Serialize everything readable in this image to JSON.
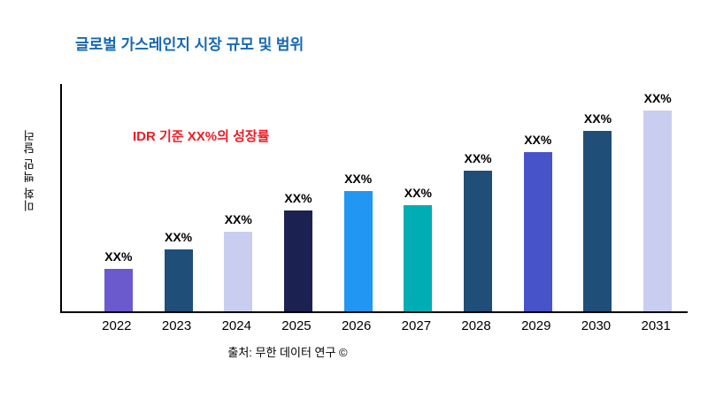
{
  "chart_data": {
    "type": "bar",
    "title": "글로벌 가스레인지 시장 규모 및 범위",
    "ylabel": "미화 백만 달러",
    "annotation": "IDR 기준 XX%의 성장률",
    "source": "출처: 무한 데이터 연구 ©",
    "categories": [
      "2022",
      "2023",
      "2024",
      "2025",
      "2026",
      "2027",
      "2028",
      "2029",
      "2030",
      "2031"
    ],
    "values": [
      49,
      71,
      92,
      116,
      139,
      122,
      162,
      184,
      208,
      231
    ],
    "bar_labels": [
      "XX%",
      "XX%",
      "XX%",
      "XX%",
      "XX%",
      "XX%",
      "XX%",
      "XX%",
      "XX%",
      "XX%"
    ],
    "colors": [
      "#6A5ACD",
      "#1F4E79",
      "#C9CDF0",
      "#1B2150",
      "#2196F3",
      "#00ADB5",
      "#1F4E79",
      "#4753C9",
      "#1F4E79",
      "#C9CDF0"
    ],
    "ylim": [
      0,
      260
    ],
    "grid": false,
    "legend": "none",
    "title_color": "#1768B3",
    "annotation_color": "#ED1C24",
    "axis_color": "#000000"
  }
}
